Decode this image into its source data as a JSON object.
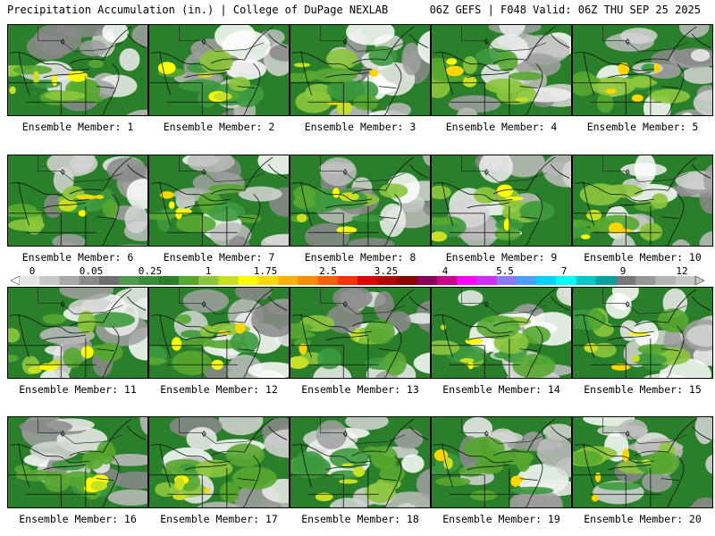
{
  "header": {
    "title_left": "Precipitation Accumulation (in.) | College of DuPage NEXLAB",
    "title_right": "06Z GEFS | F048 Valid: 06Z THU SEP 25 2025"
  },
  "panels": [
    {
      "label": "Ensemble Member: 1"
    },
    {
      "label": "Ensemble Member: 2"
    },
    {
      "label": "Ensemble Member: 3"
    },
    {
      "label": "Ensemble Member: 4"
    },
    {
      "label": "Ensemble Member: 5"
    },
    {
      "label": "Ensemble Member: 6"
    },
    {
      "label": "Ensemble Member: 7"
    },
    {
      "label": "Ensemble Member: 8"
    },
    {
      "label": "Ensemble Member: 9"
    },
    {
      "label": "Ensemble Member: 10"
    },
    {
      "label": "Ensemble Member: 11"
    },
    {
      "label": "Ensemble Member: 12"
    },
    {
      "label": "Ensemble Member: 13"
    },
    {
      "label": "Ensemble Member: 14"
    },
    {
      "label": "Ensemble Member: 15"
    },
    {
      "label": "Ensemble Member: 16"
    },
    {
      "label": "Ensemble Member: 17"
    },
    {
      "label": "Ensemble Member: 18"
    },
    {
      "label": "Ensemble Member: 19"
    },
    {
      "label": "Ensemble Member: 20"
    }
  ],
  "colorbar": {
    "tick_labels": [
      "0",
      "0.05",
      "0.25",
      "1",
      "1.75",
      "2.5",
      "3.25",
      "4",
      "5.5",
      "7",
      "9",
      "12"
    ],
    "colors": [
      "#e6e6e6",
      "#c8c8c8",
      "#a8a8a8",
      "#8a8a8a",
      "#6e6e6e",
      "#4f9a4f",
      "#3d8c3d",
      "#2e7d2e",
      "#56a830",
      "#8cc63c",
      "#c8e024",
      "#ffff00",
      "#ffd700",
      "#ffb000",
      "#ff8c00",
      "#ff6000",
      "#ff3000",
      "#e00000",
      "#b40000",
      "#8c0000",
      "#8c005a",
      "#c8008c",
      "#ff00ff",
      "#d22dff",
      "#8c78ff",
      "#4ba0ff",
      "#00d2ff",
      "#00ffff",
      "#00c8c8",
      "#00a0a0",
      "#787878",
      "#989898",
      "#b4b4b4",
      "#c8c8c8"
    ]
  }
}
